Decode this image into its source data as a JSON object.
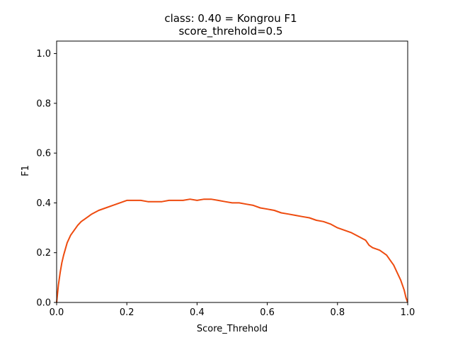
{
  "chart_data": {
    "type": "line",
    "title": "class: 0.40 = Kongrou F1",
    "subtitle": "score_threhold=0.5",
    "xlabel": "Score_Threhold",
    "ylabel": "F1",
    "xlim": [
      0.0,
      1.0
    ],
    "ylim": [
      0.0,
      1.05
    ],
    "xticks": [
      "0.0",
      "0.2",
      "0.4",
      "0.6",
      "0.8",
      "1.0"
    ],
    "yticks": [
      "0.0",
      "0.2",
      "0.4",
      "0.6",
      "0.8",
      "1.0"
    ],
    "grid": false,
    "series": [
      {
        "color": "#ee4b0f",
        "x": [
          0.0,
          0.005,
          0.01,
          0.015,
          0.02,
          0.03,
          0.04,
          0.05,
          0.06,
          0.07,
          0.08,
          0.09,
          0.1,
          0.12,
          0.14,
          0.16,
          0.18,
          0.2,
          0.22,
          0.24,
          0.26,
          0.28,
          0.3,
          0.32,
          0.34,
          0.36,
          0.38,
          0.4,
          0.42,
          0.44,
          0.46,
          0.48,
          0.5,
          0.52,
          0.54,
          0.56,
          0.58,
          0.6,
          0.62,
          0.64,
          0.66,
          0.68,
          0.7,
          0.72,
          0.74,
          0.76,
          0.78,
          0.8,
          0.82,
          0.84,
          0.86,
          0.88,
          0.89,
          0.9,
          0.92,
          0.93,
          0.94,
          0.95,
          0.96,
          0.97,
          0.98,
          0.99,
          0.995,
          1.0
        ],
        "y": [
          0.0,
          0.07,
          0.12,
          0.16,
          0.19,
          0.24,
          0.27,
          0.29,
          0.31,
          0.325,
          0.335,
          0.345,
          0.355,
          0.37,
          0.38,
          0.39,
          0.4,
          0.41,
          0.41,
          0.41,
          0.405,
          0.405,
          0.405,
          0.41,
          0.41,
          0.41,
          0.415,
          0.41,
          0.415,
          0.415,
          0.41,
          0.405,
          0.4,
          0.4,
          0.395,
          0.39,
          0.38,
          0.375,
          0.37,
          0.36,
          0.355,
          0.35,
          0.345,
          0.34,
          0.33,
          0.325,
          0.315,
          0.3,
          0.29,
          0.28,
          0.265,
          0.25,
          0.23,
          0.22,
          0.21,
          0.2,
          0.19,
          0.17,
          0.15,
          0.12,
          0.09,
          0.05,
          0.02,
          0.0
        ]
      }
    ]
  }
}
